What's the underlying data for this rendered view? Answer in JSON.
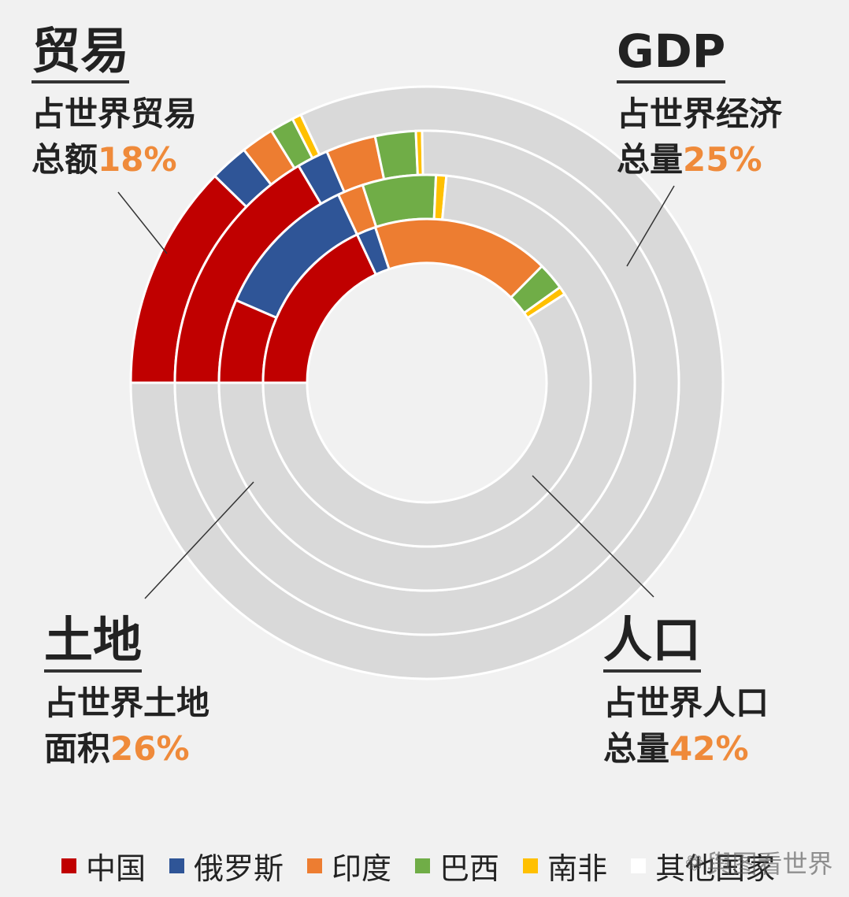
{
  "colors": {
    "background": "#f1f1f1",
    "china": "#c00000",
    "russia": "#2f5597",
    "india": "#ed7d31",
    "brazil": "#70ad47",
    "south_africa": "#ffc000",
    "other": "#d9d9d9",
    "highlight": "#ef8a3a"
  },
  "corners": {
    "trade": {
      "title": "贸易",
      "line1": "占世界贸易",
      "line2": "总额",
      "pct": "18%"
    },
    "gdp": {
      "title": "GDP",
      "line1": "占世界经济",
      "line2": "总量",
      "pct": "25%"
    },
    "land": {
      "title": "土地",
      "line1": "占世界土地",
      "line2": "面积",
      "pct": "26%"
    },
    "population": {
      "title": "人口",
      "line1": "占世界人口",
      "line2": "总量",
      "pct": "42%"
    }
  },
  "legend": [
    {
      "label": "中国",
      "color": "#c00000"
    },
    {
      "label": "俄罗斯",
      "color": "#2f5597"
    },
    {
      "label": "印度",
      "color": "#ed7d31"
    },
    {
      "label": "巴西",
      "color": "#70ad47"
    },
    {
      "label": "南非",
      "color": "#ffc000"
    },
    {
      "label": "其他国家",
      "color": "#ffffff"
    }
  ],
  "watermark": "舆图看世界",
  "chart_data": {
    "type": "pie",
    "ring_order_outer_to_inner": [
      "贸易",
      "GDP",
      "土地",
      "人口"
    ],
    "categories": [
      "中国",
      "俄罗斯",
      "印度",
      "巴西",
      "南非",
      "其他国家"
    ],
    "series": [
      {
        "name": "贸易",
        "values": [
          12.3,
          2.1,
          1.8,
          1.3,
          0.5,
          82.0
        ]
      },
      {
        "name": "GDP",
        "values": [
          16.5,
          2.0,
          3.2,
          2.6,
          0.4,
          75.3
        ]
      },
      {
        "name": "土地",
        "values": [
          6.5,
          11.5,
          2.0,
          5.7,
          0.8,
          73.5
        ]
      },
      {
        "name": "人口",
        "values": [
          18.0,
          1.9,
          17.5,
          2.7,
          0.8,
          59.1
        ]
      }
    ]
  }
}
